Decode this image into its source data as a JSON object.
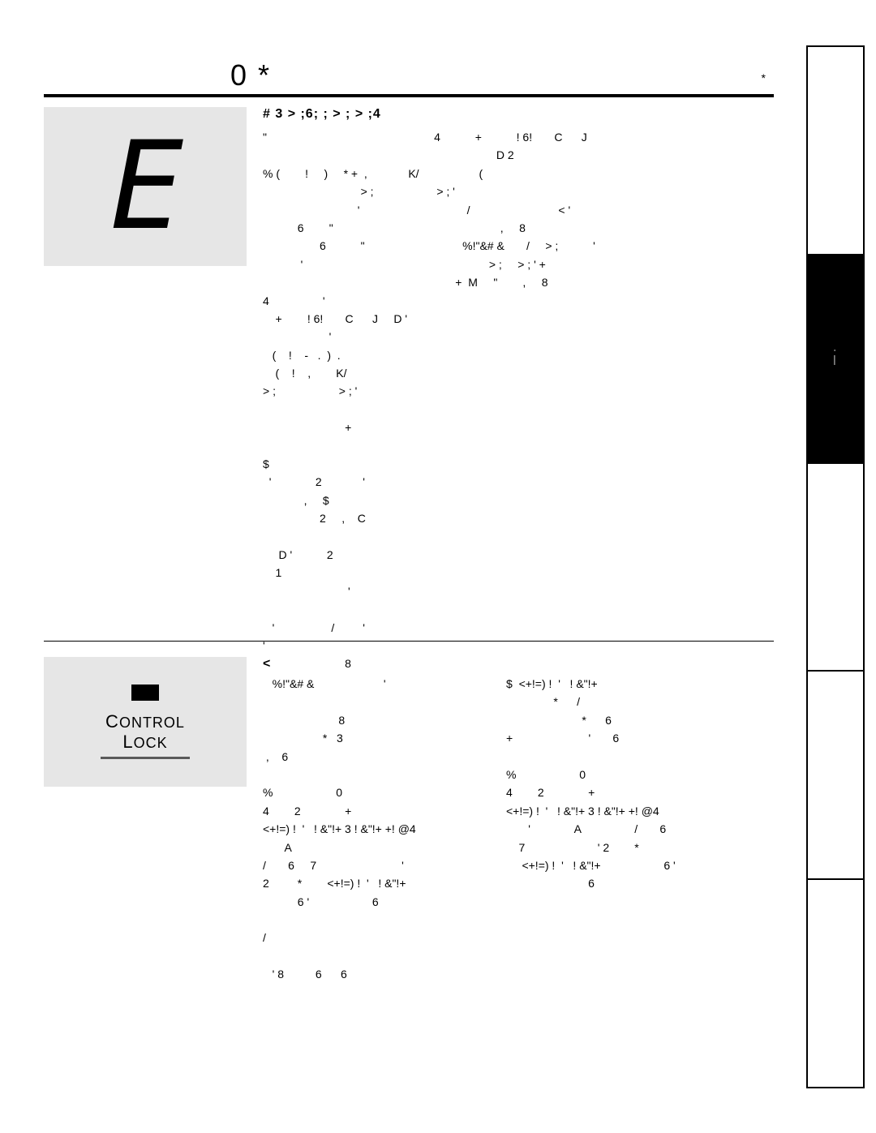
{
  "header": {
    "title": "0    *",
    "pageNum": "*"
  },
  "eSegment": "E",
  "section1": {
    "heading": "#              3           > ;6; ;     > ; > ;4",
    "col1": "\"                                                     4           +           ! 6!       C      J\n                                                                          D 2\n% (        !     )     * +  ,             K/                   (\n                               > ;                    > ; '\n                              '                                  /                            < '\n           6        \"                                                     ,     8\n                  6           \"                               %!\"&# &       /     > ;           '\n            '                                                           > ;     > ; ' +\n                                                             +  M     \"        ,     8\n4                 '\n    +        ! 6!       C      J     D '\n                     '\n   (    !    -   .  )  .\n    (    !    ,        K/\n> ;                    > ; '\n\n                          +\n\n$\n  '              2             '\n             ,     $\n                  2     ,    C\n\n     D '           2\n    1\n                           '\n\n   '                  /         '\n'\n                          8"
  },
  "controlLockLabel": "Control\nLock",
  "section2": {
    "heading": "<",
    "col1": "   %!\"&# &                      '\n\n                        8\n                   *   3\n ,    6\n\n%                    0\n4        2              +\n<+!=) !  '   ! &\"!+ 3 ! &\"!+ +! @4\n       A\n/       6     7                           '\n2         *        <+!=) !  '   ! &\"!+\n           6 '                    6\n\n/\n\n   ' 8          6      6",
    "col2": "$  <+!=) !  '   ! &\"!+\n               *      /\n                        *      6\n+                        '       6\n\n%                    0\n4        2              +\n<+!=) !  '   ! &\"!+ 3 ! &\"!+ +! @4\n       '              A                 /       6\n    7                       ' 2        *\n     <+!=) !  '   ! &\"!+                    6 '\n                          6"
  },
  "tabs": {
    "items": [
      "",
      "·—",
      "",
      "",
      ""
    ],
    "activeIndex": 1
  }
}
